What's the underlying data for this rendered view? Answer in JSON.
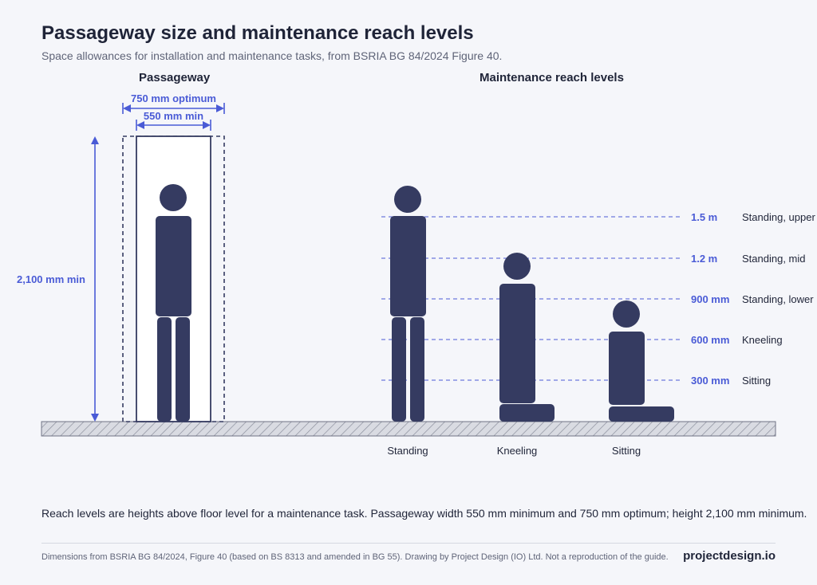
{
  "header": {
    "title": "Passageway size and maintenance reach levels",
    "subtitle": "Space allowances for installation and maintenance tasks, from BSRIA BG 84/2024 Figure 40."
  },
  "passageway": {
    "heading": "Passageway",
    "width_optimum_label": "750 mm optimum",
    "width_min_label": "550 mm min",
    "height_label": "2,100 mm min"
  },
  "reach": {
    "heading": "Maintenance reach levels",
    "levels": [
      {
        "value": "1.5 m",
        "name": "Standing, upper"
      },
      {
        "value": "1.2 m",
        "name": "Standing, mid"
      },
      {
        "value": "900 mm",
        "name": "Standing, lower"
      },
      {
        "value": "600 mm",
        "name": "Kneeling"
      },
      {
        "value": "300 mm",
        "name": "Sitting"
      }
    ],
    "figures": [
      "Standing",
      "Kneeling",
      "Sitting"
    ]
  },
  "note": "Reach levels are heights above floor level for a maintenance task. Passageway width 550 mm minimum and 750 mm optimum; height 2,100 mm minimum.",
  "footer": {
    "credit": "Dimensions from BSRIA BG 84/2024, Figure 40 (based on BS 8313 and amended in BG 55). Drawing by Project Design (IO) Ltd. Not a reproduction of the guide.",
    "brand": "projectdesign.io"
  },
  "colors": {
    "figure": "#353b61",
    "accent": "#4a5bd6",
    "text": "#1f2438"
  }
}
